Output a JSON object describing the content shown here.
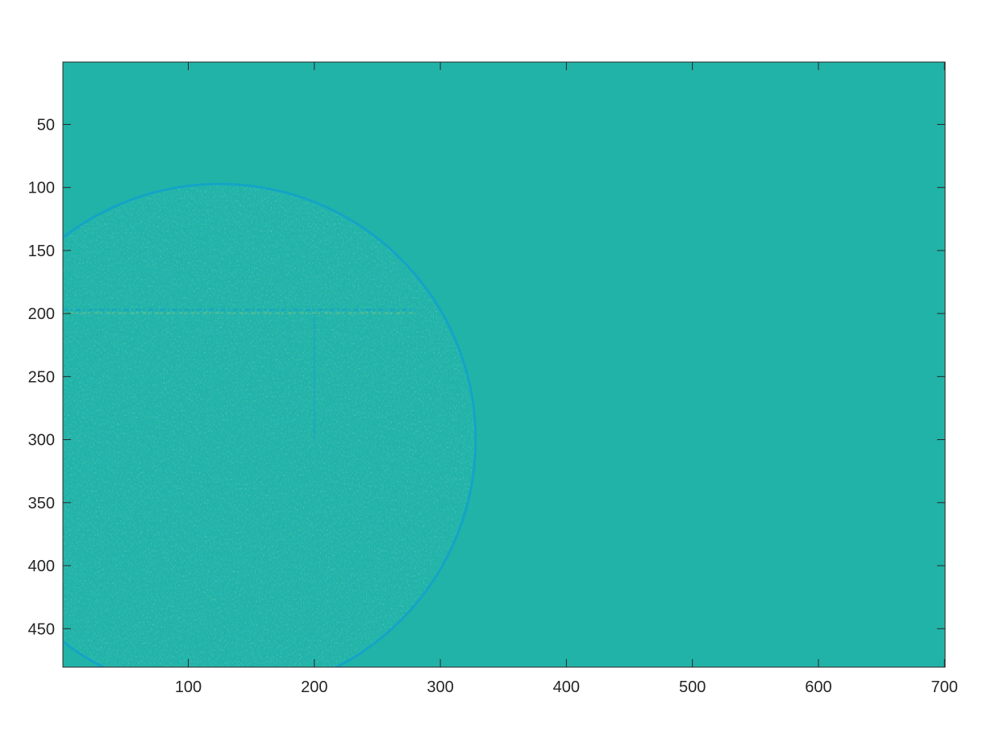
{
  "figure": {
    "background_color": "#ffffff",
    "image_base_color": "#22b3a8",
    "edge_dark_color": "#0f9fd0",
    "edge_light_color": "#86c87a",
    "axis_color": "#262626"
  },
  "chart_data": {
    "type": "heatmap",
    "title": "",
    "xlabel": "",
    "ylabel": "",
    "xlim": [
      0.5,
      700.5
    ],
    "ylim": [
      0.5,
      480.5
    ],
    "y_direction": "reversed",
    "grid": false,
    "x_ticks": [
      100,
      200,
      300,
      400,
      500,
      600,
      700
    ],
    "x_tick_labels": [
      "100",
      "200",
      "300",
      "400",
      "500",
      "600",
      "700"
    ],
    "y_ticks": [
      50,
      100,
      150,
      200,
      250,
      300,
      350,
      400,
      450
    ],
    "y_tick_labels": [
      "50",
      "100",
      "150",
      "200",
      "250",
      "300",
      "350",
      "400",
      "450"
    ],
    "features": {
      "circle": {
        "center_x": 125,
        "center_y": 300,
        "radius": 203
      },
      "horizontal_edge": {
        "y": 197,
        "x_start": 1,
        "x_end": 280
      },
      "vertical_edge": {
        "x": 200,
        "y_start": 200,
        "y_end": 300
      }
    }
  }
}
